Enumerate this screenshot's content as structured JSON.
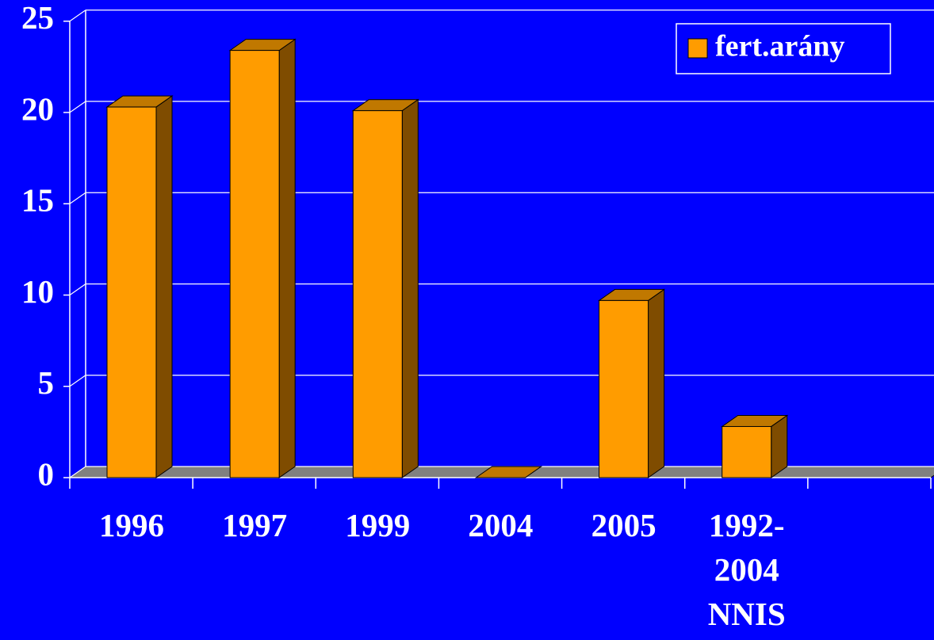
{
  "chart_data": {
    "type": "bar3d",
    "categories": [
      "1996",
      "1997",
      "1999",
      "2004",
      "2005",
      "1992-2004 NNIS",
      null
    ],
    "series": [
      {
        "name": "fert.arány",
        "color": "#ff9c00",
        "values": [
          20.3,
          23.4,
          20.1,
          0,
          9.7,
          2.8,
          null
        ]
      }
    ],
    "ylim": [
      0,
      25
    ],
    "yticks": [
      0,
      5,
      10,
      15,
      20,
      25
    ],
    "grid": true,
    "legend": "top-right",
    "background": "#0000ff"
  }
}
